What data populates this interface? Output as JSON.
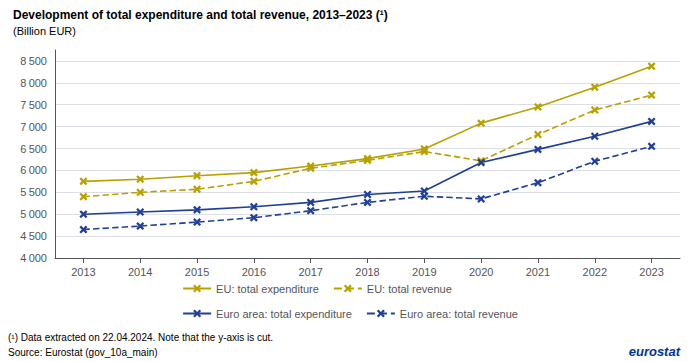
{
  "chart_data": {
    "type": "line",
    "title": "Development of total expenditure and total revenue, 2013–2023 (¹)",
    "subtitle": "(Billion EUR)",
    "categories": [
      "2013",
      "2014",
      "2015",
      "2016",
      "2017",
      "2018",
      "2019",
      "2020",
      "2021",
      "2022",
      "2023"
    ],
    "series": [
      {
        "name": "EU: total expenditure",
        "color": "#B8A000",
        "line_style": "solid",
        "marker": "x",
        "values": [
          5750,
          5800,
          5880,
          5950,
          6100,
          6270,
          6490,
          7080,
          7450,
          7900,
          8380
        ]
      },
      {
        "name": "EU: total revenue",
        "color": "#B8A000",
        "line_style": "dashed",
        "marker": "x",
        "values": [
          5400,
          5500,
          5570,
          5750,
          6050,
          6230,
          6430,
          6220,
          6820,
          7380,
          7720
        ]
      },
      {
        "name": "Euro area: total expenditure",
        "color": "#1F3F99",
        "line_style": "solid",
        "marker": "x",
        "values": [
          5000,
          5050,
          5100,
          5170,
          5270,
          5450,
          5530,
          6180,
          6480,
          6780,
          7120
        ]
      },
      {
        "name": "Euro area: total revenue",
        "color": "#1F3F99",
        "line_style": "dashed",
        "marker": "x",
        "values": [
          4650,
          4730,
          4820,
          4920,
          5080,
          5270,
          5410,
          5350,
          5720,
          6210,
          6550
        ]
      }
    ],
    "ylim": [
      4000,
      8750
    ],
    "yticks": [
      {
        "value": 4000,
        "label": "4 000"
      },
      {
        "value": 4500,
        "label": "4 500"
      },
      {
        "value": 5000,
        "label": "5 000"
      },
      {
        "value": 5500,
        "label": "5 500"
      },
      {
        "value": 6000,
        "label": "6 000"
      },
      {
        "value": 6500,
        "label": "6 500"
      },
      {
        "value": 7000,
        "label": "7 000"
      },
      {
        "value": 7500,
        "label": "7 500"
      },
      {
        "value": 8000,
        "label": "8 000"
      },
      {
        "value": 8500,
        "label": "8 500"
      }
    ],
    "grid": true,
    "legend": "bottom",
    "annotations": [
      "(¹) Data extracted on 22.04.2024. Note that the y-axis is cut.",
      "Source: Eurostat (gov_10a_main)",
      "eurostat"
    ]
  }
}
